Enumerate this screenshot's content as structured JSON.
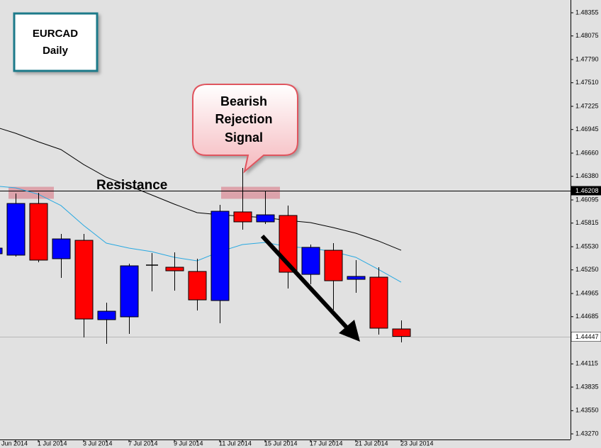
{
  "chart_data": {
    "type": "candlestick",
    "title": "EURCAD",
    "subtitle": "Daily",
    "callout": [
      "Bearish",
      "Rejection",
      "Signal"
    ],
    "level_label": "Resistance",
    "resistance": 1.46208,
    "last_price": 1.44447,
    "up_color": "#0000ff",
    "down_color": "#ff0000",
    "doji_color": "#000000",
    "categories": [
      "Jun 2014",
      null,
      "1 Jul 2014",
      null,
      "3 Jul 2014",
      null,
      "7 Jul 2014",
      null,
      "9 Jul 2014",
      null,
      "11 Jul 2014",
      null,
      "15 Jul 2014",
      null,
      "17 Jul 2014",
      null,
      "21 Jul 2014",
      null,
      "23 Jul 2014"
    ],
    "open": [
      1.45445,
      1.45428,
      1.46052,
      1.45385,
      1.45607,
      1.44649,
      1.44683,
      1.45308,
      1.45282,
      1.45231,
      1.4488,
      1.4595,
      1.4583,
      1.45907,
      1.45196,
      1.45487,
      1.45136,
      1.45162,
      1.44537
    ],
    "high": [
      1.45556,
      1.46172,
      1.46181,
      1.45684,
      1.45684,
      1.44854,
      1.45325,
      1.45453,
      1.45462,
      1.45385,
      1.46035,
      1.4648,
      1.46198,
      1.46027,
      1.45556,
      1.45573,
      1.45368,
      1.45282,
      1.4464
    ],
    "low": [
      1.4541,
      1.4541,
      1.45342,
      1.45154,
      1.44435,
      1.44358,
      1.44477,
      1.44991,
      1.45,
      1.4476,
      1.44606,
      1.45736,
      1.45804,
      1.45025,
      1.45077,
      1.44768,
      1.44974,
      1.44469,
      1.44375
    ],
    "close": [
      1.45513,
      1.46052,
      1.45368,
      1.45624,
      1.44657,
      1.44751,
      1.45299,
      1.45308,
      1.45239,
      1.44888,
      1.45958,
      1.4583,
      1.45915,
      1.45222,
      1.45522,
      1.45119,
      1.45171,
      1.44546,
      1.44447
    ],
    "lines": [
      {
        "color": "#000000",
        "values": [
          1.46985,
          1.469,
          1.46797,
          1.46703,
          1.46523,
          1.46369,
          1.46266,
          1.46155,
          1.46044,
          1.45941,
          1.45915,
          1.45898,
          1.45881,
          1.45847,
          1.45821,
          1.45761,
          1.45693,
          1.45599,
          1.45487
        ]
      },
      {
        "color": "#29a9e1",
        "values": [
          1.46266,
          1.46241,
          1.46164,
          1.46027,
          1.45787,
          1.45573,
          1.45513,
          1.4547,
          1.45402,
          1.45359,
          1.4547,
          1.45556,
          1.45582,
          1.4553,
          1.45513,
          1.4547,
          1.45402,
          1.45256,
          1.45102
        ]
      }
    ],
    "ylim": [
      1.43202,
      1.48509
    ],
    "yticks": [
      1.48355,
      1.48075,
      {
        "value": 1.4779,
        "label": "1.47790"
      },
      {
        "value": 1.4751,
        "label": "1.47510"
      },
      1.47225,
      1.46945,
      {
        "value": 1.4666,
        "label": "1.46660"
      },
      {
        "value": 1.4638,
        "label": "1.46380"
      },
      1.46095,
      1.45815,
      {
        "value": 1.4553,
        "label": "1.45530"
      },
      {
        "value": 1.4525,
        "label": "1.45250"
      },
      1.44965,
      1.44685,
      1.44115,
      1.43835,
      {
        "value": 1.4355,
        "label": "1.43550"
      },
      {
        "value": 1.4327,
        "label": "1.43270"
      }
    ]
  }
}
